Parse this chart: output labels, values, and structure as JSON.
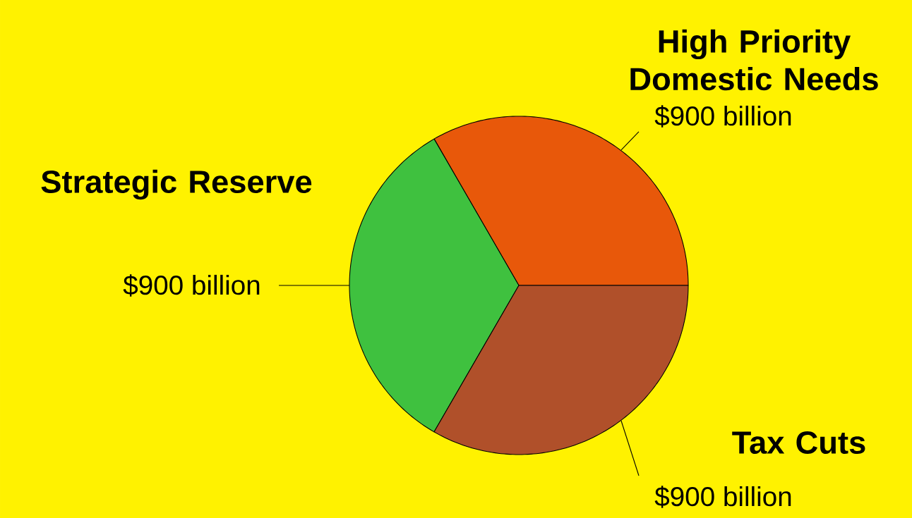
{
  "chart_data": {
    "type": "pie",
    "categories": [
      "High Priority Domestic Needs",
      "Strategic Reserve",
      "Tax Cuts"
    ],
    "values": [
      900,
      900,
      900
    ],
    "value_labels": [
      "$900 billion",
      "$900 billion",
      "$900 billion"
    ],
    "colors": [
      "#e8580a",
      "#3fc13f",
      "#b0502a"
    ]
  }
}
